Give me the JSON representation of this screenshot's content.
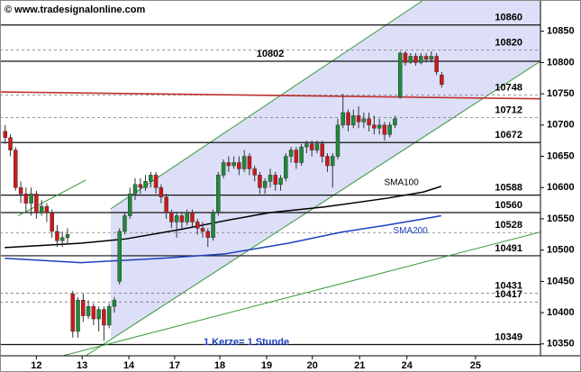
{
  "chart_data": {
    "type": "candlestick",
    "title": "© www.tradesignalonline.com",
    "note": "1 Kerze= 1 Stunde",
    "up_color": "#1f8a3a",
    "down_color": "#d01818",
    "x": [
      1,
      2,
      3,
      4,
      5,
      6,
      7,
      8,
      9,
      10,
      11,
      12,
      13,
      14,
      15,
      16,
      17,
      18,
      19,
      20,
      21,
      22,
      23,
      24,
      25,
      26,
      27,
      28,
      29,
      30,
      31,
      32,
      33,
      34,
      35,
      36,
      37,
      38,
      39,
      40,
      41,
      42,
      43,
      44,
      45,
      46,
      47,
      48,
      49,
      50,
      51,
      52,
      53,
      54,
      55,
      56,
      57,
      58,
      59,
      60,
      61,
      62,
      63,
      64,
      65,
      66,
      67,
      68,
      69,
      70,
      71,
      72,
      73,
      74,
      75,
      76,
      77,
      78,
      79,
      80,
      81,
      82,
      83,
      84,
      85
    ],
    "open": [
      10690,
      10680,
      10660,
      10600,
      10590,
      10575,
      10590,
      10560,
      10570,
      10560,
      10530,
      10515,
      10520,
      10430,
      10370,
      10420,
      10395,
      10410,
      10390,
      10405,
      10380,
      10410,
      10450,
      10530,
      10555,
      10590,
      10605,
      10600,
      10610,
      10620,
      10600,
      10585,
      10560,
      10545,
      10555,
      10545,
      10560,
      10545,
      10535,
      10530,
      10520,
      10560,
      10620,
      10640,
      10635,
      10640,
      10630,
      10650,
      10630,
      10620,
      10600,
      10610,
      10620,
      10605,
      10615,
      10650,
      10660,
      10640,
      10665,
      10670,
      10660,
      10670,
      10650,
      10635,
      10650,
      10700,
      10720,
      10700,
      10715,
      10705,
      10710,
      10700,
      10695,
      10700,
      10685,
      10700,
      10745,
      10815,
      10800,
      10810,
      10800,
      10810,
      10805,
      10810,
      10780
    ],
    "high": [
      10700,
      10685,
      10665,
      10610,
      10600,
      10600,
      10595,
      10580,
      10575,
      10565,
      10540,
      10530,
      10535,
      10435,
      10425,
      10430,
      10420,
      10415,
      10410,
      10410,
      10415,
      10425,
      10535,
      10560,
      10600,
      10615,
      10615,
      10620,
      10625,
      10625,
      10605,
      10590,
      10565,
      10560,
      10560,
      10565,
      10565,
      10550,
      10545,
      10535,
      10565,
      10625,
      10645,
      10650,
      10650,
      10650,
      10660,
      10655,
      10635,
      10625,
      10615,
      10630,
      10625,
      10620,
      10655,
      10665,
      10665,
      10670,
      10675,
      10675,
      10675,
      10675,
      10655,
      10655,
      10710,
      10750,
      10725,
      10725,
      10730,
      10720,
      10720,
      10715,
      10710,
      10705,
      10705,
      10715,
      10818,
      10818,
      10815,
      10815,
      10815,
      10815,
      10818,
      10815,
      10785
    ],
    "low": [
      10670,
      10650,
      10595,
      10575,
      10560,
      10555,
      10550,
      10555,
      10545,
      10520,
      10505,
      10505,
      10510,
      10360,
      10360,
      10385,
      10390,
      10380,
      10370,
      10355,
      10375,
      10400,
      10445,
      10525,
      10550,
      10580,
      10590,
      10595,
      10600,
      10590,
      10575,
      10550,
      10535,
      10520,
      10535,
      10540,
      10535,
      10525,
      10520,
      10505,
      10515,
      10555,
      10615,
      10625,
      10630,
      10620,
      10625,
      10620,
      10610,
      10590,
      10590,
      10600,
      10595,
      10595,
      10610,
      10640,
      10630,
      10635,
      10655,
      10650,
      10655,
      10640,
      10625,
      10600,
      10645,
      10695,
      10690,
      10695,
      10695,
      10695,
      10690,
      10685,
      10685,
      10675,
      10680,
      10695,
      10742,
      10795,
      10798,
      10795,
      10797,
      10800,
      10800,
      10780,
      10760
    ],
    "close": [
      10680,
      10660,
      10600,
      10590,
      10575,
      10590,
      10560,
      10570,
      10560,
      10530,
      10515,
      10520,
      10525,
      10370,
      10420,
      10395,
      10410,
      10390,
      10405,
      10380,
      10410,
      10420,
      10530,
      10555,
      10590,
      10605,
      10600,
      10610,
      10620,
      10600,
      10585,
      10560,
      10545,
      10555,
      10545,
      10560,
      10545,
      10535,
      10530,
      10520,
      10560,
      10620,
      10640,
      10635,
      10640,
      10630,
      10650,
      10630,
      10620,
      10600,
      10610,
      10620,
      10605,
      10615,
      10650,
      10660,
      10640,
      10665,
      10670,
      10660,
      10670,
      10650,
      10635,
      10650,
      10700,
      10720,
      10700,
      10715,
      10705,
      10710,
      10700,
      10695,
      10700,
      10685,
      10700,
      10710,
      10815,
      10800,
      10810,
      10800,
      10810,
      10805,
      10810,
      10785,
      10765
    ],
    "xlim": [
      0,
      104
    ],
    "xticks": [
      {
        "value": 7,
        "label": "12"
      },
      {
        "value": 15.8,
        "label": "13"
      },
      {
        "value": 24.8,
        "label": "14"
      },
      {
        "value": 33.6,
        "label": "17"
      },
      {
        "value": 42.3,
        "label": "18"
      },
      {
        "value": 51.3,
        "label": "19"
      },
      {
        "value": 60.1,
        "label": "20"
      },
      {
        "value": 69.2,
        "label": "21"
      },
      {
        "value": 78.3,
        "label": "24"
      },
      {
        "value": 91.5,
        "label": "25"
      }
    ],
    "ylim": [
      10331,
      10900
    ],
    "yticks": [
      10350,
      10400,
      10450,
      10500,
      10550,
      10600,
      10650,
      10700,
      10750,
      10800,
      10850
    ],
    "levels": [
      {
        "value": 10860,
        "style": "solid"
      },
      {
        "value": 10820,
        "style": "dashed"
      },
      {
        "value": 10802,
        "style": "solid"
      },
      {
        "value": 10748,
        "style": "dashed"
      },
      {
        "value": 10712,
        "style": "dashed"
      },
      {
        "value": 10672,
        "style": "solid"
      },
      {
        "value": 10588,
        "style": "solid"
      },
      {
        "value": 10560,
        "style": "solid"
      },
      {
        "value": 10528,
        "style": "dashed"
      },
      {
        "value": 10491,
        "style": "solid"
      },
      {
        "value": 10431,
        "style": "dashed"
      },
      {
        "value": 10417,
        "style": "dashed"
      },
      {
        "value": 10349,
        "style": "solid"
      }
    ],
    "channel": {
      "color": "#dcdff7",
      "line_color": "#3a9a3a",
      "upper": {
        "x": [
          21.3,
          81.5
        ],
        "values": [
          10566,
          10900
        ]
      },
      "lower": {
        "x": [
          16.5,
          104
        ],
        "values": [
          10331,
          10802
        ]
      }
    },
    "trendlines": [
      {
        "color": "#3a9a3a",
        "x": [
          12.1,
          104
        ],
        "values": [
          10331,
          10529
        ]
      },
      {
        "color": "#3a9a3a",
        "x": [
          3.5,
          16.5
        ],
        "values": [
          10555,
          10612
        ]
      },
      {
        "color": "#c03030",
        "x": [
          0,
          104
        ],
        "values": [
          10753,
          10742
        ]
      }
    ],
    "series": [
      {
        "name": "SMA100",
        "color": "#000000",
        "x": [
          0.9,
          15.6,
          24.3,
          34.7,
          43.3,
          52,
          62.4,
          74.5,
          81.5,
          84.9
        ],
        "values": [
          10504,
          10511,
          10518,
          10533,
          10547,
          10560,
          10569,
          10583,
          10593,
          10602
        ]
      },
      {
        "name": "SMA200",
        "color": "#1f3fbf",
        "x": [
          0.9,
          15.6,
          31.2,
          43.3,
          55.5,
          65.9,
          74.5,
          81.5,
          84.9
        ],
        "values": [
          10487,
          10480,
          10487,
          10494,
          10511,
          10529,
          10540,
          10550,
          10555
        ]
      }
    ]
  }
}
